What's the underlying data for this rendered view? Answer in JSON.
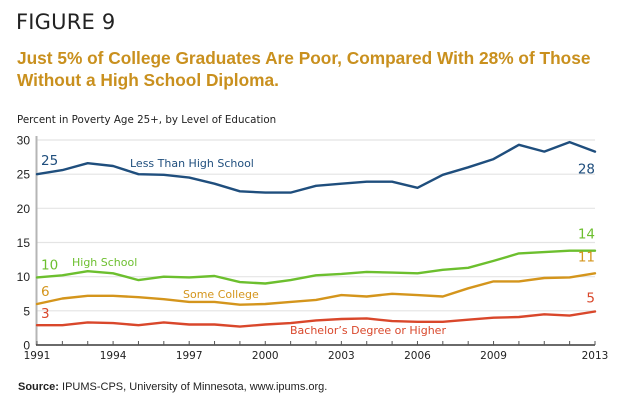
{
  "figure_label": "FIGURE 9",
  "headline": "Just 5% of College Graduates Are Poor, Compared With 28% of Those Without a High School Diploma.",
  "source": {
    "prefix": "Source:",
    "text": " IPUMS-CPS, University of Minnesota, www.ipums.org."
  },
  "chart_data": {
    "type": "line",
    "title": "Percent in Poverty Age 25+, by Level of Education",
    "xlabel": "",
    "ylabel": "",
    "x": [
      1991,
      1992,
      1993,
      1994,
      1995,
      1996,
      1997,
      1998,
      1999,
      2000,
      2001,
      2002,
      2003,
      2004,
      2005,
      2006,
      2007,
      2008,
      2009,
      2010,
      2011,
      2012,
      2013
    ],
    "xlim": [
      1991,
      2013
    ],
    "ylim": [
      0,
      30
    ],
    "x_ticks": [
      1991,
      1994,
      1997,
      2000,
      2003,
      2006,
      2009,
      2013
    ],
    "y_ticks": [
      0,
      5,
      10,
      15,
      20,
      25,
      30
    ],
    "grid": "horizontal",
    "legend": "inline",
    "series": [
      {
        "name": "Less Than High School",
        "color": "#1f4e7d",
        "start_label": "25",
        "end_label": "28",
        "values": [
          25.0,
          25.6,
          26.6,
          26.2,
          25.0,
          24.9,
          24.5,
          23.6,
          22.5,
          22.3,
          22.3,
          23.3,
          23.6,
          23.9,
          23.9,
          23.0,
          24.9,
          26.0,
          27.2,
          29.3,
          28.3,
          29.7,
          28.3
        ]
      },
      {
        "name": "High School",
        "color": "#6cbf2e",
        "start_label": "10",
        "end_label": "14",
        "values": [
          9.9,
          10.2,
          10.8,
          10.5,
          9.5,
          10.0,
          9.9,
          10.1,
          9.2,
          9.0,
          9.5,
          10.2,
          10.4,
          10.7,
          10.6,
          10.5,
          11.0,
          11.3,
          12.3,
          13.4,
          13.6,
          13.8,
          13.8
        ]
      },
      {
        "name": "Some College",
        "color": "#d4951c",
        "start_label": "6",
        "end_label": "11",
        "values": [
          6.0,
          6.8,
          7.2,
          7.2,
          7.0,
          6.7,
          6.3,
          6.3,
          5.9,
          6.0,
          6.3,
          6.6,
          7.3,
          7.1,
          7.5,
          7.3,
          7.1,
          8.3,
          9.3,
          9.3,
          9.8,
          9.9,
          10.5
        ]
      },
      {
        "name": "Bachelor’s Degree or Higher",
        "color": "#d9472b",
        "start_label": "3",
        "end_label": "5",
        "values": [
          2.9,
          2.9,
          3.3,
          3.2,
          2.9,
          3.3,
          3.0,
          3.0,
          2.7,
          3.0,
          3.2,
          3.6,
          3.8,
          3.9,
          3.5,
          3.4,
          3.4,
          3.7,
          4.0,
          4.1,
          4.5,
          4.3,
          4.9
        ]
      }
    ]
  }
}
